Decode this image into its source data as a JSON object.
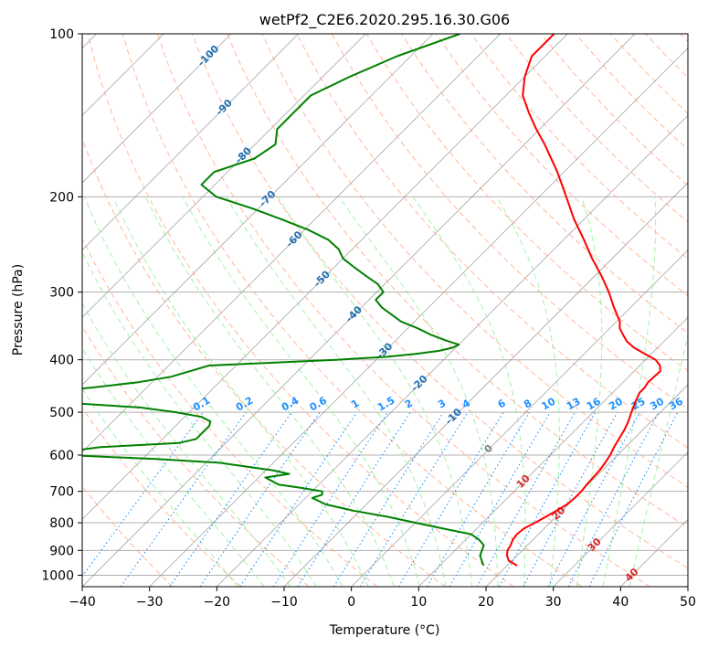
{
  "chart_data": {
    "type": "line",
    "diagram": "skew-t log-p",
    "title": "wetPf2_C2E6.2020.295.16.30.G06",
    "xlabel": "Temperature (°C)",
    "ylabel": "Pressure (hPa)",
    "xlim": [
      -40,
      50
    ],
    "ylim": [
      1050,
      100
    ],
    "y_scale": "log",
    "grid": true,
    "x_ticks": [
      -40,
      -30,
      -20,
      -10,
      0,
      10,
      20,
      30,
      40,
      50
    ],
    "y_ticks": [
      100,
      200,
      300,
      400,
      500,
      600,
      700,
      800,
      900,
      1000
    ],
    "colors": {
      "temperature": "#ff0000",
      "dewpoint": "#008000",
      "isotherm": "#808080",
      "dry_adiabat": "#ffa07a",
      "moist_adiabat": "#90ee90",
      "mixing_ratio": "#1e90ff",
      "frame": "#000000"
    },
    "series": [
      {
        "key": "temperature",
        "pressure": [
          960,
          940,
          920,
          900,
          880,
          860,
          840,
          820,
          800,
          780,
          760,
          740,
          720,
          700,
          680,
          660,
          640,
          620,
          600,
          580,
          560,
          540,
          520,
          500,
          480,
          460,
          450,
          440,
          430,
          420,
          410,
          400,
          390,
          380,
          370,
          360,
          350,
          340,
          320,
          300,
          280,
          260,
          240,
          220,
          200,
          180,
          160,
          150,
          140,
          130,
          120,
          110,
          100
        ],
        "values": [
          21.5,
          19.5,
          18.5,
          17.8,
          17.5,
          17.0,
          16.8,
          17.0,
          17.8,
          18.5,
          19.2,
          19.8,
          20.0,
          20.0,
          19.8,
          19.7,
          19.6,
          19.3,
          18.9,
          18.3,
          17.8,
          17.3,
          16.6,
          15.7,
          14.8,
          14.0,
          14.0,
          13.7,
          13.8,
          13.9,
          13.0,
          11.5,
          9.0,
          6.5,
          4.5,
          3.0,
          1.5,
          0.5,
          -2.5,
          -5.5,
          -9.0,
          -13.0,
          -17.0,
          -21.5,
          -26.0,
          -31.0,
          -37.0,
          -40.5,
          -44.0,
          -47.5,
          -50.0,
          -52.0,
          -52.0
        ]
      },
      {
        "key": "dewpoint",
        "pressure": [
          960,
          940,
          920,
          900,
          880,
          860,
          840,
          820,
          800,
          780,
          760,
          740,
          720,
          710,
          700,
          690,
          680,
          660,
          650,
          640,
          620,
          610,
          600,
          590,
          580,
          570,
          560,
          550,
          540,
          530,
          520,
          510,
          500,
          490,
          480,
          470,
          460,
          450,
          440,
          430,
          420,
          410,
          400,
          395,
          390,
          385,
          380,
          375,
          370,
          360,
          350,
          340,
          320,
          310,
          300,
          290,
          280,
          270,
          260,
          250,
          240,
          230,
          220,
          210,
          200,
          190,
          180,
          170,
          160,
          150,
          140,
          130,
          120,
          110,
          100
        ],
        "values": [
          16.5,
          15.5,
          14.5,
          14.0,
          13.5,
          12.0,
          10.0,
          5.0,
          0.0,
          -5.0,
          -11.0,
          -16.0,
          -19.0,
          -18.0,
          -18.5,
          -22.0,
          -26.0,
          -29.0,
          -26.0,
          -29.0,
          -38.0,
          -48.0,
          -62.0,
          -62.0,
          -58.0,
          -47.0,
          -45.0,
          -45.0,
          -45.0,
          -45.0,
          -45.5,
          -47.5,
          -52.0,
          -58.0,
          -70.0,
          -84.0,
          -75.0,
          -68.0,
          -62.0,
          -58.0,
          -56.0,
          -54.0,
          -36.0,
          -29.0,
          -25.0,
          -22.0,
          -20.5,
          -20.0,
          -22.0,
          -25.5,
          -28.5,
          -32.0,
          -37.0,
          -39.0,
          -39.0,
          -41.0,
          -44.0,
          -47.0,
          -50.0,
          -52.0,
          -55.0,
          -59.5,
          -65.0,
          -71.0,
          -78.0,
          -82.0,
          -82.0,
          -78.0,
          -77.0,
          -79.0,
          -79.0,
          -79.0,
          -76.0,
          -72.0,
          -66.0
        ]
      }
    ],
    "isotherm_labels": [
      {
        "temp": -100,
        "pressure": 110,
        "text": "-100"
      },
      {
        "temp": -90,
        "pressure": 137,
        "text": "-90"
      },
      {
        "temp": -80,
        "pressure": 168,
        "text": "-80"
      },
      {
        "temp": -70,
        "pressure": 202,
        "text": "-70"
      },
      {
        "temp": -60,
        "pressure": 240,
        "text": "-60"
      },
      {
        "temp": -50,
        "pressure": 284,
        "text": "-50"
      },
      {
        "temp": -40,
        "pressure": 330,
        "text": "-40"
      },
      {
        "temp": -30,
        "pressure": 386,
        "text": "-30"
      },
      {
        "temp": -20,
        "pressure": 443,
        "text": "-20"
      },
      {
        "temp": -10,
        "pressure": 510,
        "text": "-10"
      },
      {
        "temp": 0,
        "pressure": 585,
        "text": "0"
      },
      {
        "temp": 10,
        "pressure": 672,
        "text": "10"
      },
      {
        "temp": 20,
        "pressure": 770,
        "text": "20"
      },
      {
        "temp": 30,
        "pressure": 880,
        "text": "30"
      },
      {
        "temp": 40,
        "pressure": 1000,
        "text": "40"
      }
    ],
    "mixing_ratio_labels": [
      "0.1",
      "0.2",
      "0.4",
      "0.6",
      "1",
      "1.5",
      "2",
      "3",
      "4",
      "6",
      "8",
      "10",
      "13",
      "16",
      "20",
      "25",
      "30",
      "36"
    ],
    "mixing_ratio_values": [
      0.1,
      0.2,
      0.4,
      0.6,
      1,
      1.5,
      2,
      3,
      4,
      6,
      8,
      10,
      13,
      16,
      20,
      25,
      30,
      36
    ]
  }
}
